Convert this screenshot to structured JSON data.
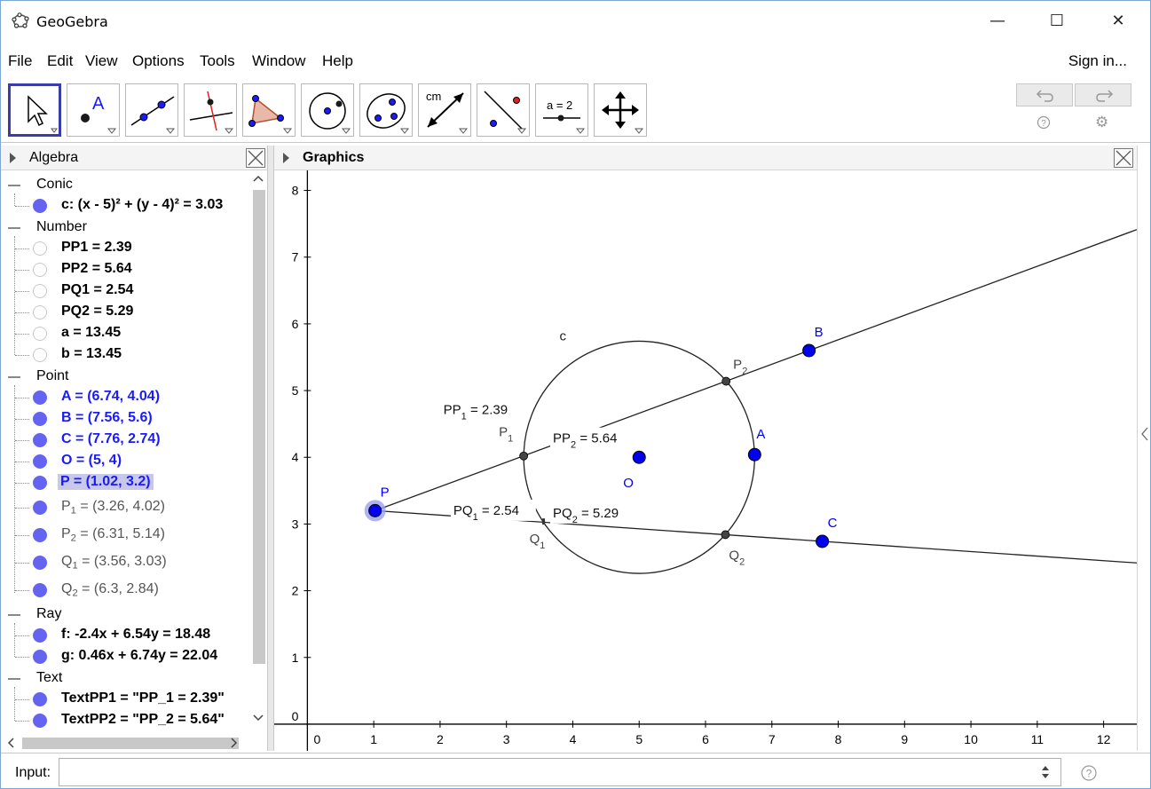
{
  "window": {
    "title": "GeoGebra",
    "minimize": "—",
    "maximize": "☐",
    "close": "✕"
  },
  "menu": [
    "File",
    "Edit",
    "View",
    "Options",
    "Tools",
    "Window",
    "Help"
  ],
  "sign_in": "Sign in...",
  "toolbar": {
    "tools": [
      "move-tool",
      "point-tool",
      "line-tool",
      "perpendicular-line-tool",
      "polygon-tool",
      "circle-tool",
      "conic-tool",
      "measure-tool",
      "reflect-tool",
      "slider-tool",
      "move-graphics-tool"
    ],
    "selected": "move-tool",
    "point_tool_label": "A",
    "measure_tool_label": "cm",
    "slider_tool_label": "a = 2"
  },
  "algebra": {
    "title": "Algebra",
    "groups": [
      {
        "name": "Conic",
        "items": [
          {
            "text": "c: (x - 5)² + (y - 4)² = 3.03",
            "visible": true,
            "color": "#000000"
          }
        ]
      },
      {
        "name": "Number",
        "items": [
          {
            "text": "PP1 = 2.39",
            "visible": false,
            "color": "#000000"
          },
          {
            "text": "PP2 = 5.64",
            "visible": false,
            "color": "#000000"
          },
          {
            "text": "PQ1 = 2.54",
            "visible": false,
            "color": "#000000"
          },
          {
            "text": "PQ2 = 5.29",
            "visible": false,
            "color": "#000000"
          },
          {
            "text": "a = 13.45",
            "visible": false,
            "color": "#000000"
          },
          {
            "text": "b = 13.45",
            "visible": false,
            "color": "#000000"
          }
        ]
      },
      {
        "name": "Point",
        "items": [
          {
            "text": "A = (6.74, 4.04)",
            "visible": true,
            "color": "#1a1aff"
          },
          {
            "text": "B = (7.56, 5.6)",
            "visible": true,
            "color": "#1a1aff"
          },
          {
            "text": "C = (7.76, 2.74)",
            "visible": true,
            "color": "#1a1aff"
          },
          {
            "text": "O = (5, 4)",
            "visible": true,
            "color": "#1a1aff"
          },
          {
            "text": "P = (1.02, 3.2)",
            "visible": true,
            "color": "#1a1aff",
            "selected": true
          },
          {
            "name": "P",
            "sub": "1",
            "value": " = (3.26, 4.02)",
            "visible": true,
            "color": "#555555"
          },
          {
            "name": "P",
            "sub": "2",
            "value": " = (6.31, 5.14)",
            "visible": true,
            "color": "#555555"
          },
          {
            "name": "Q",
            "sub": "1",
            "value": " = (3.56, 3.03)",
            "visible": true,
            "color": "#555555"
          },
          {
            "name": "Q",
            "sub": "2",
            "value": " = (6.3, 2.84)",
            "visible": true,
            "color": "#555555"
          }
        ]
      },
      {
        "name": "Ray",
        "items": [
          {
            "text": "f: -2.4x + 6.54y = 18.48",
            "visible": true,
            "color": "#000000"
          },
          {
            "text": "g: 0.46x + 6.74y = 22.04",
            "visible": true,
            "color": "#000000"
          }
        ]
      },
      {
        "name": "Text",
        "items": [
          {
            "text": "TextPP1 = \"PP_1 = 2.39\"",
            "visible": true,
            "color": "#000000"
          },
          {
            "text": "TextPP2 = \"PP_2 = 5.64\"",
            "visible": true,
            "color": "#000000"
          }
        ]
      }
    ]
  },
  "graphics": {
    "title": "Graphics",
    "xlim": [
      -0.5,
      12.5
    ],
    "ylim": [
      -0.4,
      8.3
    ],
    "x_ticks": [
      0,
      1,
      2,
      3,
      4,
      5,
      6,
      7,
      8,
      9,
      10,
      11,
      12
    ],
    "y_ticks": [
      0,
      1,
      2,
      3,
      4,
      5,
      6,
      7,
      8
    ],
    "circle": {
      "label": "c",
      "center": [
        5,
        4
      ],
      "radius": 1.74
    },
    "rays": [
      {
        "name": "f",
        "from": [
          1.02,
          3.2
        ],
        "through": [
          7.56,
          5.6
        ]
      },
      {
        "name": "g",
        "from": [
          1.02,
          3.2
        ],
        "through": [
          7.76,
          2.74
        ]
      }
    ],
    "points": [
      {
        "label": "A",
        "x": 6.74,
        "y": 4.04,
        "kind": "free"
      },
      {
        "label": "B",
        "x": 7.56,
        "y": 5.6,
        "kind": "free"
      },
      {
        "label": "C",
        "x": 7.76,
        "y": 2.74,
        "kind": "free"
      },
      {
        "label": "O",
        "x": 5,
        "y": 4,
        "kind": "free"
      },
      {
        "label": "P",
        "x": 1.02,
        "y": 3.2,
        "kind": "selected"
      },
      {
        "label": "P",
        "sub": "1",
        "x": 3.26,
        "y": 4.02,
        "kind": "dependent"
      },
      {
        "label": "P",
        "sub": "2",
        "x": 6.31,
        "y": 5.14,
        "kind": "dependent"
      },
      {
        "label": "Q",
        "sub": "1",
        "x": 3.56,
        "y": 3.03,
        "kind": "hidden"
      },
      {
        "label": "Q",
        "sub": "2",
        "x": 6.3,
        "y": 2.84,
        "kind": "dependent"
      }
    ],
    "texts": [
      {
        "name": "PP",
        "sub": "1",
        "value": " = 2.39"
      },
      {
        "name": "PP",
        "sub": "2",
        "value": " = 5.64"
      },
      {
        "name": "PQ",
        "sub": "1",
        "value": " = 2.54"
      },
      {
        "name": "PQ",
        "sub": "2",
        "value": " = 5.29"
      }
    ],
    "colors": {
      "free_point": "#0000ee",
      "dependent_point": "#444444",
      "axis": "#000000",
      "label_free": "#0000ee",
      "label_dependent": "#444444"
    }
  },
  "input": {
    "label": "Input:",
    "value": "",
    "placeholder": ""
  },
  "help_icon": "?",
  "settings_icon": "⚙"
}
